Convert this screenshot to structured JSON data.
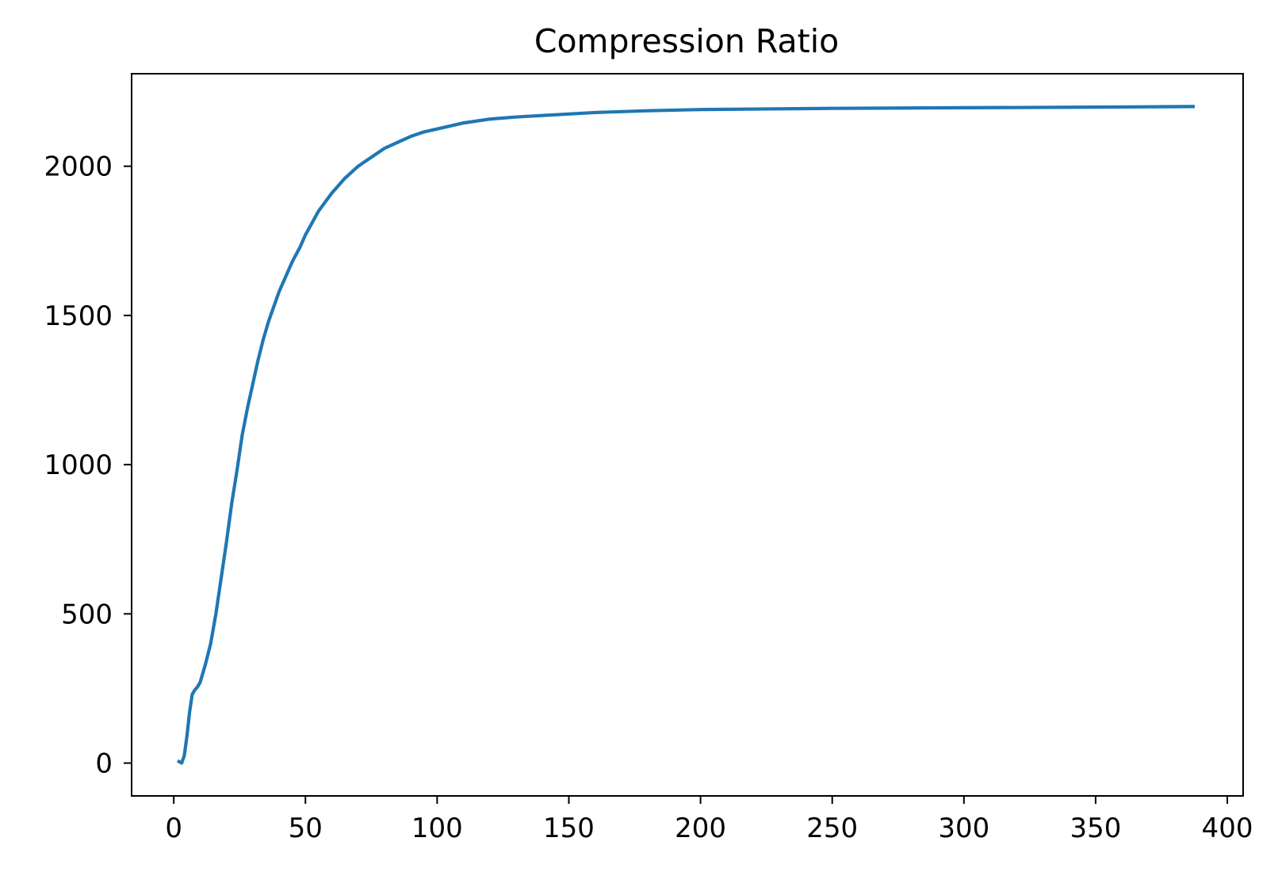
{
  "chart_data": {
    "type": "line",
    "title": "Compression Ratio",
    "xlabel": "",
    "ylabel": "",
    "xlim": [
      -16,
      406
    ],
    "ylim": [
      -110,
      2310
    ],
    "xticks": [
      0,
      50,
      100,
      150,
      200,
      250,
      300,
      350,
      400
    ],
    "yticks": [
      0,
      500,
      1000,
      1500,
      2000
    ],
    "grid": false,
    "legend": "none",
    "colors": {
      "line": "#1f77b4",
      "axes": "#000000",
      "background": "#ffffff"
    },
    "series": [
      {
        "name": "compression ratio",
        "x": [
          2,
          3,
          4,
          5,
          6,
          7,
          8,
          9,
          10,
          12,
          14,
          16,
          18,
          20,
          22,
          24,
          26,
          28,
          30,
          32,
          34,
          36,
          38,
          40,
          42,
          45,
          48,
          50,
          55,
          60,
          65,
          70,
          75,
          80,
          85,
          90,
          95,
          100,
          110,
          120,
          130,
          140,
          150,
          160,
          170,
          180,
          190,
          200,
          225,
          250,
          300,
          350,
          387
        ],
        "y": [
          5,
          0,
          25,
          90,
          170,
          230,
          245,
          255,
          270,
          330,
          400,
          500,
          620,
          740,
          870,
          980,
          1100,
          1190,
          1270,
          1350,
          1420,
          1480,
          1530,
          1580,
          1620,
          1680,
          1730,
          1770,
          1850,
          1910,
          1960,
          2000,
          2030,
          2060,
          2080,
          2100,
          2115,
          2125,
          2145,
          2158,
          2165,
          2170,
          2175,
          2180,
          2183,
          2186,
          2188,
          2190,
          2192,
          2194,
          2196,
          2198,
          2200
        ]
      }
    ]
  }
}
